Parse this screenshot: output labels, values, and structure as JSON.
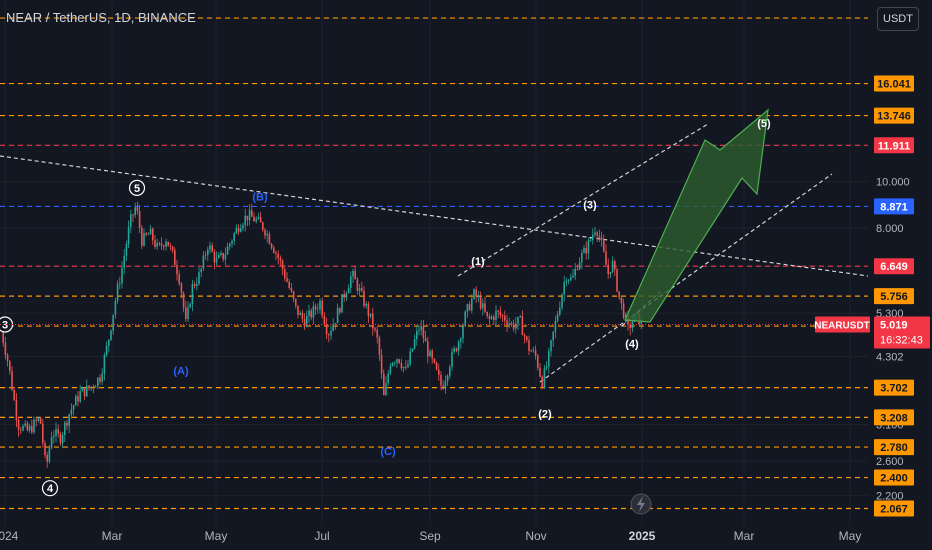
{
  "header": {
    "title": "NEAR / TetherUS, 1D, BINANCE",
    "currency_button": "USDT"
  },
  "colors": {
    "background": "#131722",
    "grid": "#1e222d",
    "up": "#26a69a",
    "down": "#ef5350",
    "orange": "#ff9800",
    "red": "#f23645",
    "blue": "#2962ff",
    "wave_blue": "#2962ff",
    "arrow_fill": "#2e5e2e",
    "arrow_stroke": "#4caf50"
  },
  "chart_data": {
    "type": "candlestick",
    "symbol": "NEARUSDT",
    "last_price": "5.019",
    "countdown": "16:32:43",
    "x_axis": {
      "ticks": [
        "2024",
        "Mar",
        "May",
        "Jul",
        "Sep",
        "Nov",
        "2025",
        "Mar",
        "May"
      ]
    },
    "y_axis": {
      "scale": "log",
      "range": [
        1.9,
        24.0
      ],
      "tick_labels": [
        {
          "value": 10.0,
          "label": "10.000"
        },
        {
          "value": 8.0,
          "label": "8.000"
        },
        {
          "value": 5.3,
          "label": "5.300"
        },
        {
          "value": 4.3,
          "label": "4.302"
        },
        {
          "value": 3.1,
          "label": "3.100"
        },
        {
          "value": 2.6,
          "label": "2.600"
        },
        {
          "value": 2.2,
          "label": "2.200"
        }
      ]
    },
    "price_levels": [
      {
        "value": 22.0,
        "label": "",
        "color": "orange"
      },
      {
        "value": 16.041,
        "label": "16.041",
        "color": "orange"
      },
      {
        "value": 13.746,
        "label": "13.746",
        "color": "orange"
      },
      {
        "value": 11.911,
        "label": "11.911",
        "color": "red"
      },
      {
        "value": 8.871,
        "label": "8.871",
        "color": "blue"
      },
      {
        "value": 6.649,
        "label": "6.649",
        "color": "red"
      },
      {
        "value": 5.756,
        "label": "5.756",
        "color": "orange"
      },
      {
        "value": 4.982,
        "label": "4.982",
        "color": "orange"
      },
      {
        "value": 3.702,
        "label": "3.702",
        "color": "orange"
      },
      {
        "value": 3.208,
        "label": "3.208",
        "color": "orange"
      },
      {
        "value": 2.78,
        "label": "2.780",
        "color": "orange"
      },
      {
        "value": 2.4,
        "label": "2.400",
        "color": "orange"
      },
      {
        "value": 2.067,
        "label": "2.067",
        "color": "orange"
      }
    ],
    "price_path": [
      [
        0,
        5.0
      ],
      [
        8,
        4.2
      ],
      [
        18,
        3.1
      ],
      [
        28,
        3.0
      ],
      [
        40,
        3.2
      ],
      [
        46,
        2.5
      ],
      [
        52,
        3.0
      ],
      [
        60,
        2.9
      ],
      [
        70,
        3.3
      ],
      [
        80,
        3.6
      ],
      [
        90,
        3.7
      ],
      [
        100,
        3.9
      ],
      [
        108,
        4.6
      ],
      [
        115,
        5.6
      ],
      [
        122,
        6.6
      ],
      [
        130,
        8.2
      ],
      [
        136,
        8.9
      ],
      [
        142,
        7.5
      ],
      [
        150,
        7.8
      ],
      [
        158,
        7.2
      ],
      [
        166,
        7.6
      ],
      [
        174,
        6.9
      ],
      [
        180,
        6.2
      ],
      [
        186,
        5.0
      ],
      [
        192,
        6.0
      ],
      [
        200,
        6.4
      ],
      [
        208,
        7.4
      ],
      [
        216,
        6.8
      ],
      [
        224,
        7.0
      ],
      [
        232,
        7.6
      ],
      [
        240,
        8.2
      ],
      [
        248,
        8.5
      ],
      [
        256,
        8.3
      ],
      [
        264,
        8.0
      ],
      [
        272,
        7.4
      ],
      [
        280,
        6.8
      ],
      [
        288,
        6.1
      ],
      [
        296,
        5.4
      ],
      [
        304,
        5.1
      ],
      [
        312,
        5.3
      ],
      [
        320,
        5.6
      ],
      [
        328,
        4.8
      ],
      [
        336,
        5.2
      ],
      [
        344,
        5.8
      ],
      [
        352,
        6.4
      ],
      [
        358,
        6.0
      ],
      [
        364,
        5.6
      ],
      [
        370,
        5.2
      ],
      [
        378,
        4.6
      ],
      [
        384,
        3.5
      ],
      [
        390,
        4.2
      ],
      [
        398,
        4.3
      ],
      [
        406,
        4.0
      ],
      [
        414,
        4.6
      ],
      [
        420,
        5.0
      ],
      [
        428,
        4.4
      ],
      [
        436,
        4.0
      ],
      [
        442,
        3.7
      ],
      [
        450,
        4.2
      ],
      [
        458,
        4.6
      ],
      [
        466,
        5.3
      ],
      [
        474,
        5.8
      ],
      [
        480,
        5.6
      ],
      [
        488,
        5.1
      ],
      [
        496,
        5.3
      ],
      [
        504,
        5.2
      ],
      [
        512,
        5.0
      ],
      [
        520,
        5.1
      ],
      [
        528,
        4.5
      ],
      [
        536,
        4.3
      ],
      [
        542,
        3.8
      ],
      [
        548,
        4.2
      ],
      [
        554,
        4.9
      ],
      [
        560,
        5.6
      ],
      [
        566,
        6.4
      ],
      [
        572,
        6.2
      ],
      [
        578,
        6.8
      ],
      [
        584,
        7.1
      ],
      [
        590,
        7.5
      ],
      [
        596,
        8.1
      ],
      [
        602,
        7.3
      ],
      [
        608,
        6.4
      ],
      [
        612,
        6.8
      ],
      [
        616,
        6.2
      ],
      [
        620,
        5.6
      ],
      [
        624,
        5.3
      ],
      [
        628,
        4.9
      ],
      [
        632,
        5.1
      ],
      [
        638,
        5.2
      ],
      [
        642,
        5.02
      ]
    ],
    "wave_labels": [
      {
        "text": "5",
        "style": "circle",
        "x": 137,
        "price": 9.7
      },
      {
        "text": "(B)",
        "style": "blue",
        "x": 260,
        "price": 9.3
      },
      {
        "text": "(A)",
        "style": "blue",
        "x": 181,
        "price": 4.02
      },
      {
        "text": "4",
        "style": "circle",
        "x": 50,
        "price": 2.28
      },
      {
        "text": "3",
        "style": "circle",
        "x": 5,
        "price": 5.02
      },
      {
        "text": "(C)",
        "style": "blue",
        "x": 388,
        "price": 2.73
      },
      {
        "text": "(1)",
        "style": "white",
        "x": 478,
        "price": 6.82
      },
      {
        "text": "(2)",
        "style": "white",
        "x": 545,
        "price": 3.27
      },
      {
        "text": "(3)",
        "style": "white",
        "x": 590,
        "price": 8.95
      },
      {
        "text": "(4)",
        "style": "white",
        "x": 632,
        "price": 4.58
      },
      {
        "text": "(5)",
        "style": "white",
        "x": 764,
        "price": 13.25
      }
    ]
  }
}
